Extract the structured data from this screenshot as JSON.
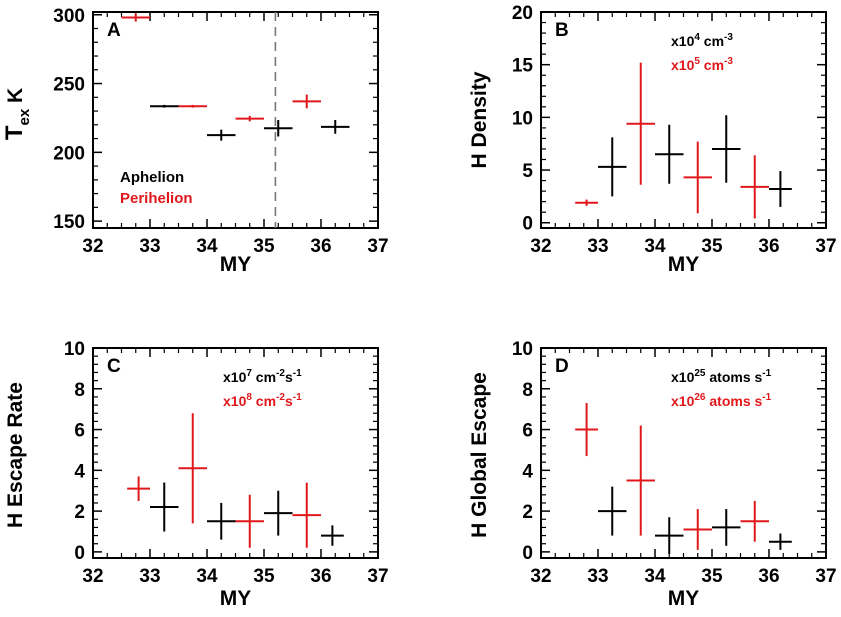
{
  "colors": {
    "aphelion": "#000000",
    "perihelion": "#e0181b",
    "frame": "#000000"
  },
  "chart_data": [
    {
      "type": "scatter",
      "panel_letter": "A",
      "xlabel": "MY",
      "ylabel": "T",
      "ylabel_sub": "ex",
      "ylabel_unit": "K",
      "xlim": [
        32,
        37
      ],
      "ylim": [
        145,
        302
      ],
      "xticks": [
        32,
        33,
        34,
        35,
        36,
        37
      ],
      "yticks": [
        150,
        200,
        250,
        300
      ],
      "vline": 35.2,
      "legend": [
        {
          "label": "Aphelion",
          "color_key": "aphelion"
        },
        {
          "label": "Perihelion",
          "color_key": "perihelion"
        }
      ],
      "unit_notes": [],
      "series": [
        {
          "name": "Aphelion",
          "color_key": "aphelion",
          "points": [
            {
              "x": 33.25,
              "y": 233.5,
              "xerr": 0.25,
              "yerr": 1
            },
            {
              "x": 34.25,
              "y": 212.5,
              "xerr": 0.25,
              "yerr": 4
            },
            {
              "x": 35.25,
              "y": 217.5,
              "xerr": 0.25,
              "yerr": 6
            },
            {
              "x": 36.25,
              "y": 218.5,
              "xerr": 0.25,
              "yerr": 5
            }
          ]
        },
        {
          "name": "Perihelion",
          "color_key": "perihelion",
          "points": [
            {
              "x": 32.75,
              "y": 298,
              "xerr": 0.25,
              "yerr": 3
            },
            {
              "x": 33.75,
              "y": 233.5,
              "xerr": 0.25,
              "yerr": 1
            },
            {
              "x": 34.75,
              "y": 224.5,
              "xerr": 0.25,
              "yerr": 2
            },
            {
              "x": 35.75,
              "y": 237,
              "xerr": 0.25,
              "yerr": 5
            }
          ]
        }
      ]
    },
    {
      "type": "scatter",
      "panel_letter": "B",
      "xlabel": "MY",
      "ylabel": "H Density",
      "xlim": [
        32,
        37
      ],
      "ylim": [
        -0.5,
        20
      ],
      "xticks": [
        32,
        33,
        34,
        35,
        36,
        37
      ],
      "yticks": [
        0,
        5,
        10,
        15,
        20
      ],
      "legend": [],
      "unit_notes": [
        {
          "pre": "x10",
          "sup": "4",
          "post": " cm",
          "post_sup": "-3",
          "color_key": "aphelion"
        },
        {
          "pre": "x10",
          "sup": "5",
          "post": " cm",
          "post_sup": "-3",
          "color_key": "perihelion"
        }
      ],
      "series": [
        {
          "name": "Aphelion",
          "color_key": "aphelion",
          "points": [
            {
              "x": 33.25,
              "y": 5.3,
              "xerr": 0.25,
              "yerr": 2.8
            },
            {
              "x": 34.25,
              "y": 6.5,
              "xerr": 0.25,
              "yerr": 2.8
            },
            {
              "x": 35.25,
              "y": 7.0,
              "xerr": 0.25,
              "yerr": 3.2
            },
            {
              "x": 36.2,
              "y": 3.2,
              "xerr": 0.2,
              "yerr": 1.7
            }
          ]
        },
        {
          "name": "Perihelion",
          "color_key": "perihelion",
          "points": [
            {
              "x": 32.8,
              "y": 1.9,
              "xerr": 0.2,
              "yerr": 0.3
            },
            {
              "x": 33.75,
              "y": 9.4,
              "xerr": 0.25,
              "yerr": 5.8
            },
            {
              "x": 34.75,
              "y": 4.3,
              "xerr": 0.25,
              "yerr": 3.4
            },
            {
              "x": 35.75,
              "y": 3.4,
              "xerr": 0.25,
              "yerr": 3.0
            }
          ]
        }
      ]
    },
    {
      "type": "scatter",
      "panel_letter": "C",
      "xlabel": "MY",
      "ylabel": "H Escape Rate",
      "xlim": [
        32,
        37
      ],
      "ylim": [
        -0.3,
        10
      ],
      "xticks": [
        32,
        33,
        34,
        35,
        36,
        37
      ],
      "yticks": [
        0,
        2,
        4,
        6,
        8,
        10
      ],
      "legend": [],
      "unit_notes": [
        {
          "pre": "x10",
          "sup": "7",
          "post": " cm",
          "post_sup": "-2",
          "post2": "s",
          "post2_sup": "-1",
          "color_key": "aphelion"
        },
        {
          "pre": "x10",
          "sup": "8",
          "post": " cm",
          "post_sup": "-2",
          "post2": "s",
          "post2_sup": "-1",
          "color_key": "perihelion"
        }
      ],
      "series": [
        {
          "name": "Aphelion",
          "color_key": "aphelion",
          "points": [
            {
              "x": 33.25,
              "y": 2.2,
              "xerr": 0.25,
              "yerr": 1.2
            },
            {
              "x": 34.25,
              "y": 1.5,
              "xerr": 0.25,
              "yerr": 0.9
            },
            {
              "x": 35.25,
              "y": 1.9,
              "xerr": 0.25,
              "yerr": 1.1
            },
            {
              "x": 36.2,
              "y": 0.8,
              "xerr": 0.2,
              "yerr": 0.5
            }
          ]
        },
        {
          "name": "Perihelion",
          "color_key": "perihelion",
          "points": [
            {
              "x": 32.8,
              "y": 3.1,
              "xerr": 0.2,
              "yerr": 0.6
            },
            {
              "x": 33.75,
              "y": 4.1,
              "xerr": 0.25,
              "yerr": 2.7
            },
            {
              "x": 34.75,
              "y": 1.5,
              "xerr": 0.25,
              "yerr": 1.3
            },
            {
              "x": 35.75,
              "y": 1.8,
              "xerr": 0.25,
              "yerr": 1.6
            }
          ]
        }
      ]
    },
    {
      "type": "scatter",
      "panel_letter": "D",
      "xlabel": "MY",
      "ylabel": "H Global Escape",
      "xlim": [
        32,
        37
      ],
      "ylim": [
        -0.3,
        10
      ],
      "xticks": [
        32,
        33,
        34,
        35,
        36,
        37
      ],
      "yticks": [
        0,
        2,
        4,
        6,
        8,
        10
      ],
      "legend": [],
      "unit_notes": [
        {
          "pre": "x10",
          "sup": "25",
          "post": " atoms s",
          "post_sup": "-1",
          "color_key": "aphelion"
        },
        {
          "pre": "x10",
          "sup": "26",
          "post": " atoms s",
          "post_sup": "-1",
          "color_key": "perihelion"
        }
      ],
      "series": [
        {
          "name": "Aphelion",
          "color_key": "aphelion",
          "points": [
            {
              "x": 33.25,
              "y": 2.0,
              "xerr": 0.25,
              "yerr": 1.2
            },
            {
              "x": 34.25,
              "y": 0.8,
              "xerr": 0.25,
              "yerr": 0.9
            },
            {
              "x": 35.25,
              "y": 1.2,
              "xerr": 0.25,
              "yerr": 0.9
            },
            {
              "x": 36.2,
              "y": 0.5,
              "xerr": 0.2,
              "yerr": 0.4
            }
          ]
        },
        {
          "name": "Perihelion",
          "color_key": "perihelion",
          "points": [
            {
              "x": 32.8,
              "y": 6.0,
              "xerr": 0.2,
              "yerr": 1.3
            },
            {
              "x": 33.75,
              "y": 3.5,
              "xerr": 0.25,
              "yerr": 2.7
            },
            {
              "x": 34.75,
              "y": 1.1,
              "xerr": 0.25,
              "yerr": 1.0
            },
            {
              "x": 35.75,
              "y": 1.5,
              "xerr": 0.25,
              "yerr": 1.0
            }
          ]
        }
      ]
    }
  ]
}
